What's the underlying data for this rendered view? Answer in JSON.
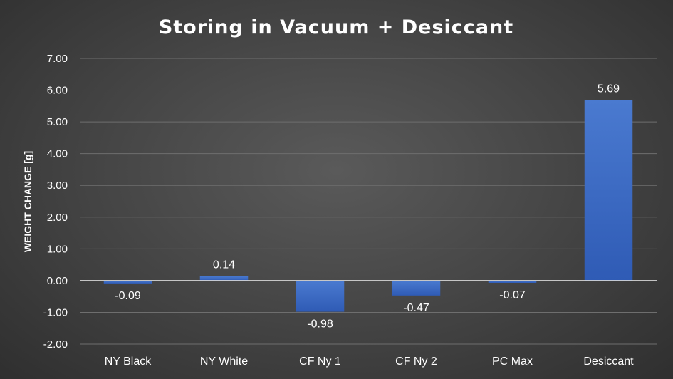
{
  "chart_data": {
    "type": "bar",
    "title": "Storing in Vacuum + Desiccant",
    "xlabel": "",
    "ylabel": "WEIGHT CHANGE [g]",
    "categories": [
      "NY Black",
      "NY White",
      "CF Ny 1",
      "CF Ny 2",
      "PC Max",
      "Desiccant"
    ],
    "values": [
      -0.09,
      0.14,
      -0.98,
      -0.47,
      -0.07,
      5.69
    ],
    "data_labels": [
      "-0.09",
      "0.14",
      "-0.98",
      "-0.47",
      "-0.07",
      "5.69"
    ],
    "ylim": [
      -2.0,
      7.0
    ],
    "yticks": [
      -2,
      -1,
      0,
      1,
      2,
      3,
      4,
      5,
      6,
      7
    ],
    "ytick_labels": [
      "-2.00",
      "-1.00",
      "0.00",
      "1.00",
      "2.00",
      "3.00",
      "4.00",
      "5.00",
      "6.00",
      "7.00"
    ],
    "grid": true,
    "legend": "none",
    "colors": {
      "bar": "#4472c4",
      "grid": "#6e6e6e",
      "axis": "#d9d9d9",
      "text": "#ffffff"
    }
  }
}
